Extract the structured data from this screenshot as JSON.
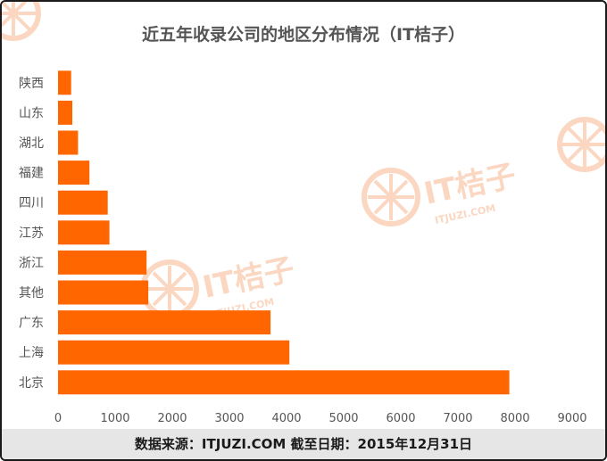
{
  "chart_data": {
    "type": "bar",
    "orientation": "horizontal",
    "title": "近五年收录公司的地区分布情况（IT桔子）",
    "categories": [
      "陕西",
      "山东",
      "湖北",
      "福建",
      "四川",
      "江苏",
      "浙江",
      "其他",
      "广东",
      "上海",
      "北京"
    ],
    "values": [
      230,
      250,
      350,
      550,
      870,
      900,
      1550,
      1580,
      3720,
      4050,
      7900
    ],
    "xlim": [
      0,
      9000
    ],
    "xticks": [
      "0",
      "1000",
      "2000",
      "3000",
      "4000",
      "5000",
      "6000",
      "7000",
      "8000",
      "9000"
    ],
    "grid": false,
    "legend": "none",
    "bar_color": "#ff6600"
  },
  "footer": {
    "source": "数据来源：ITJUZI.COM   截至日期：2015年12月31日"
  },
  "colors": {
    "bar": "#ff6600",
    "watermark": "#fbd7c2",
    "footer_bg": "#e6e6e6",
    "text": "#555555"
  },
  "watermark": {
    "logo": "IT桔子",
    "site": "ITJUZI.COM"
  }
}
